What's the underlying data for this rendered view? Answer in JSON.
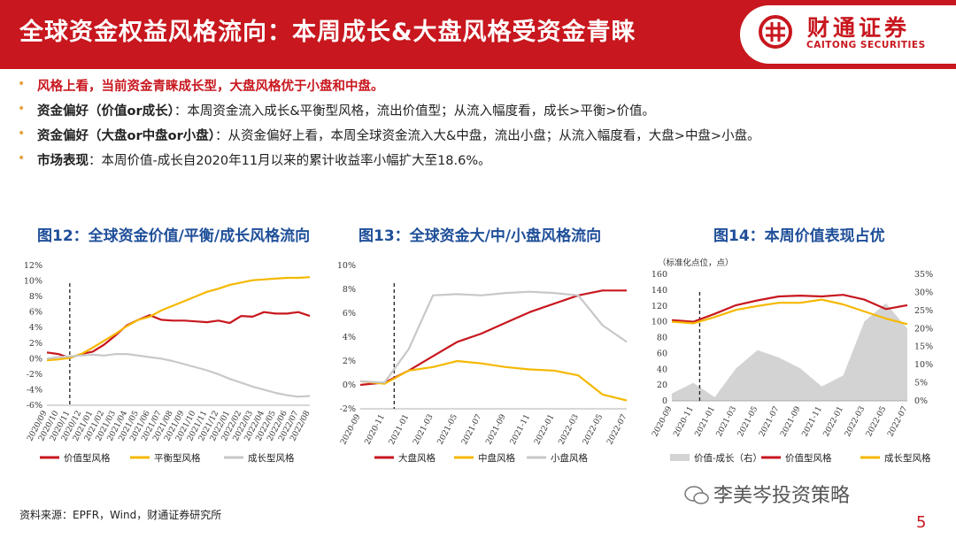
{
  "header": {
    "title": "全球资金权益风格流向：本周成长&大盘风格受资金青睐",
    "logo_cn": "财通证券",
    "logo_en": "CAITONG SECURITIES"
  },
  "bullets": [
    {
      "text": "风格上看，当前资金青睐成长型，大盘风格优于小盘和中盘。"
    },
    {
      "bold": "资金偏好（价值or成长）",
      "text": "：本周资金流入成长&平衡型风格，流出价值型；从流入幅度看，成长>平衡>价值。"
    },
    {
      "bold": "资金偏好（大盘or中盘or小盘）",
      "text": "：从资金偏好上看，本周全球资金流入大&中盘，流出小盘；从流入幅度看，大盘>中盘>小盘。"
    },
    {
      "bold": "市场表现",
      "text": "：本周价值-成长自2020年11月以来的累计收益率小幅扩大至18.6%。"
    }
  ],
  "source": "资料来源：EPFR，Wind，财通证券研究所",
  "watermark": "李美岑投资策略",
  "page_number": "5",
  "colors": {
    "red": "#c8171e",
    "yellow": "#f5b800",
    "gray": "#c8c8c8",
    "title_blue": "#1f4f99"
  },
  "chart_data": [
    {
      "title": "图12：全球资金价值/平衡/成长风格流向",
      "type": "line",
      "x": [
        "2020/09",
        "2020/10",
        "2020/11",
        "2020/12",
        "2021/01",
        "2021/02",
        "2021/03",
        "2021/04",
        "2021/05",
        "2021/06",
        "2021/07",
        "2021/08",
        "2021/09",
        "2021/10",
        "2021/11",
        "2021/12",
        "2022/01",
        "2022/02",
        "2022/03",
        "2022/04",
        "2022/05",
        "2022/06",
        "2022/07",
        "2022/08"
      ],
      "ylim": [
        -6,
        12
      ],
      "yticks": [
        "-6%",
        "-4%",
        "-2%",
        "0%",
        "2%",
        "4%",
        "6%",
        "8%",
        "10%",
        "12%"
      ],
      "marker_x": 2.0,
      "series": [
        {
          "name": "价值型风格",
          "color": "#c8171e",
          "values": [
            0.8,
            0.6,
            0.1,
            0.6,
            0.9,
            1.8,
            3.0,
            4.3,
            5.0,
            5.6,
            5.0,
            4.9,
            4.9,
            4.8,
            4.7,
            4.9,
            4.6,
            5.5,
            5.4,
            6.0,
            5.8,
            5.8,
            6.0,
            5.5
          ]
        },
        {
          "name": "平衡型风格",
          "color": "#f5b800",
          "values": [
            -0.2,
            -0.1,
            0.1,
            0.6,
            1.4,
            2.3,
            3.2,
            4.2,
            5.0,
            5.4,
            6.2,
            6.8,
            7.4,
            8.0,
            8.6,
            9.0,
            9.5,
            9.8,
            10.1,
            10.2,
            10.3,
            10.4,
            10.4,
            10.5
          ]
        },
        {
          "name": "成长型风格",
          "color": "#c8c8c8",
          "values": [
            0.0,
            0.2,
            0.3,
            0.4,
            0.5,
            0.4,
            0.6,
            0.6,
            0.4,
            0.2,
            0.0,
            -0.3,
            -0.7,
            -1.1,
            -1.5,
            -2.0,
            -2.6,
            -3.1,
            -3.6,
            -4.0,
            -4.4,
            -4.7,
            -4.9,
            -4.8
          ]
        }
      ],
      "legend": [
        "价值型风格",
        "平衡型风格",
        "成长型风格"
      ]
    },
    {
      "title": "图13：全球资金大/中/小盘风格流向",
      "type": "line",
      "x": [
        "2020-09",
        "2020-11",
        "2021-01",
        "2021-03",
        "2021-05",
        "2021-07",
        "2021-09",
        "2021-11",
        "2022-01",
        "2022-03",
        "2022-05",
        "2022-07"
      ],
      "ylim": [
        -2,
        10
      ],
      "yticks": [
        "-2%",
        "0%",
        "2%",
        "4%",
        "6%",
        "8%",
        "10%"
      ],
      "marker_x": 1.4,
      "series": [
        {
          "name": "大盘风格",
          "color": "#c8171e",
          "values": [
            0.0,
            0.2,
            1.2,
            2.4,
            3.6,
            4.3,
            5.2,
            6.1,
            6.8,
            7.5,
            7.9,
            7.9
          ]
        },
        {
          "name": "中盘风格",
          "color": "#f5b800",
          "values": [
            0.3,
            0.1,
            1.2,
            1.5,
            2.0,
            1.8,
            1.5,
            1.3,
            1.2,
            0.8,
            -0.8,
            -1.3
          ]
        },
        {
          "name": "小盘风格",
          "color": "#c8c8c8",
          "values": [
            0.3,
            0.2,
            3.0,
            7.5,
            7.6,
            7.5,
            7.7,
            7.8,
            7.7,
            7.5,
            5.0,
            3.6
          ]
        }
      ],
      "legend": [
        "大盘风格",
        "中盘风格",
        "小盘风格"
      ]
    },
    {
      "title": "图14：本周价值表现占优",
      "type": "line",
      "y_unit_label": "（标准化点位，点）",
      "x": [
        "2020-09",
        "2020-11",
        "2021-01",
        "2021-03",
        "2021-05",
        "2021-07",
        "2021-09",
        "2021-11",
        "2022-01",
        "2022-03",
        "2022-05",
        "2022-07"
      ],
      "ylim": [
        0,
        160
      ],
      "yticks": [
        "0",
        "20",
        "40",
        "60",
        "80",
        "100",
        "120",
        "140",
        "160"
      ],
      "y2lim": [
        0,
        35
      ],
      "y2ticks": [
        "0%",
        "5%",
        "10%",
        "15%",
        "20%",
        "25%",
        "30%",
        "35%"
      ],
      "marker_x": 1.3,
      "area": {
        "name": "价值-成长（右）",
        "color": "#d3d3d3",
        "values": [
          2,
          5,
          1,
          9,
          14,
          12,
          9,
          4,
          7,
          22,
          27,
          20
        ]
      },
      "series": [
        {
          "name": "价值型风格",
          "color": "#c8171e",
          "values": [
            102,
            100,
            110,
            121,
            127,
            132,
            133,
            132,
            134,
            128,
            116,
            121
          ]
        },
        {
          "name": "成长型风格",
          "color": "#f5b800",
          "values": [
            100,
            98,
            106,
            115,
            120,
            124,
            124,
            128,
            122,
            113,
            104,
            97
          ]
        }
      ],
      "legend": [
        "价值-成长（右）",
        "价值型风格",
        "成长型风格"
      ]
    }
  ]
}
